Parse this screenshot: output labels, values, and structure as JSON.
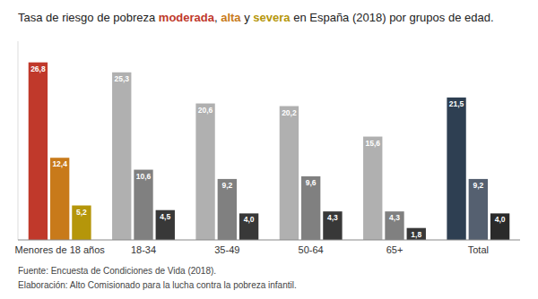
{
  "chart_data": {
    "type": "bar",
    "title": "Tasa de riesgo de pobreza moderada, alta y severa en España (2018) por grupos de edad.",
    "categories": [
      "Menores de 18 años",
      "18-34",
      "35-49",
      "50-64",
      "65+",
      "Total"
    ],
    "series": [
      {
        "name": "moderada",
        "colors": [
          "#c0392b",
          "#b0b0b0",
          "#b0b0b0",
          "#b0b0b0",
          "#b0b0b0",
          "#2e3f52"
        ],
        "values": [
          26.8,
          25.3,
          20.6,
          20.2,
          15.6,
          21.5
        ],
        "value_labels": [
          "26,8",
          "25,3",
          "20,6",
          "20,2",
          "15,6",
          "21,5"
        ]
      },
      {
        "name": "alta",
        "colors": [
          "#c87a1a",
          "#808080",
          "#808080",
          "#808080",
          "#808080",
          "#556070"
        ],
        "values": [
          12.4,
          10.6,
          9.2,
          9.6,
          4.3,
          9.2
        ],
        "value_labels": [
          "12,4",
          "10,6",
          "9,2",
          "9,6",
          "4,3",
          "9,2"
        ]
      },
      {
        "name": "severa",
        "colors": [
          "#b5960a",
          "#383838",
          "#383838",
          "#383838",
          "#383838",
          "#2a2a2a"
        ],
        "values": [
          5.2,
          4.5,
          4.0,
          4.3,
          1.8,
          4.0
        ],
        "value_labels": [
          "5,2",
          "4,5",
          "4,0",
          "4,3",
          "1,8",
          "4,0"
        ]
      }
    ],
    "ylim": [
      0,
      30
    ],
    "data_labels": true,
    "tick_labels": "x",
    "grid": false,
    "annotations": [
      "Fuente: Encuesta de Condiciones de Vida (2018).",
      "Elaboración: Alto Comisionado para la lucha contra la pobreza infantil."
    ]
  }
}
